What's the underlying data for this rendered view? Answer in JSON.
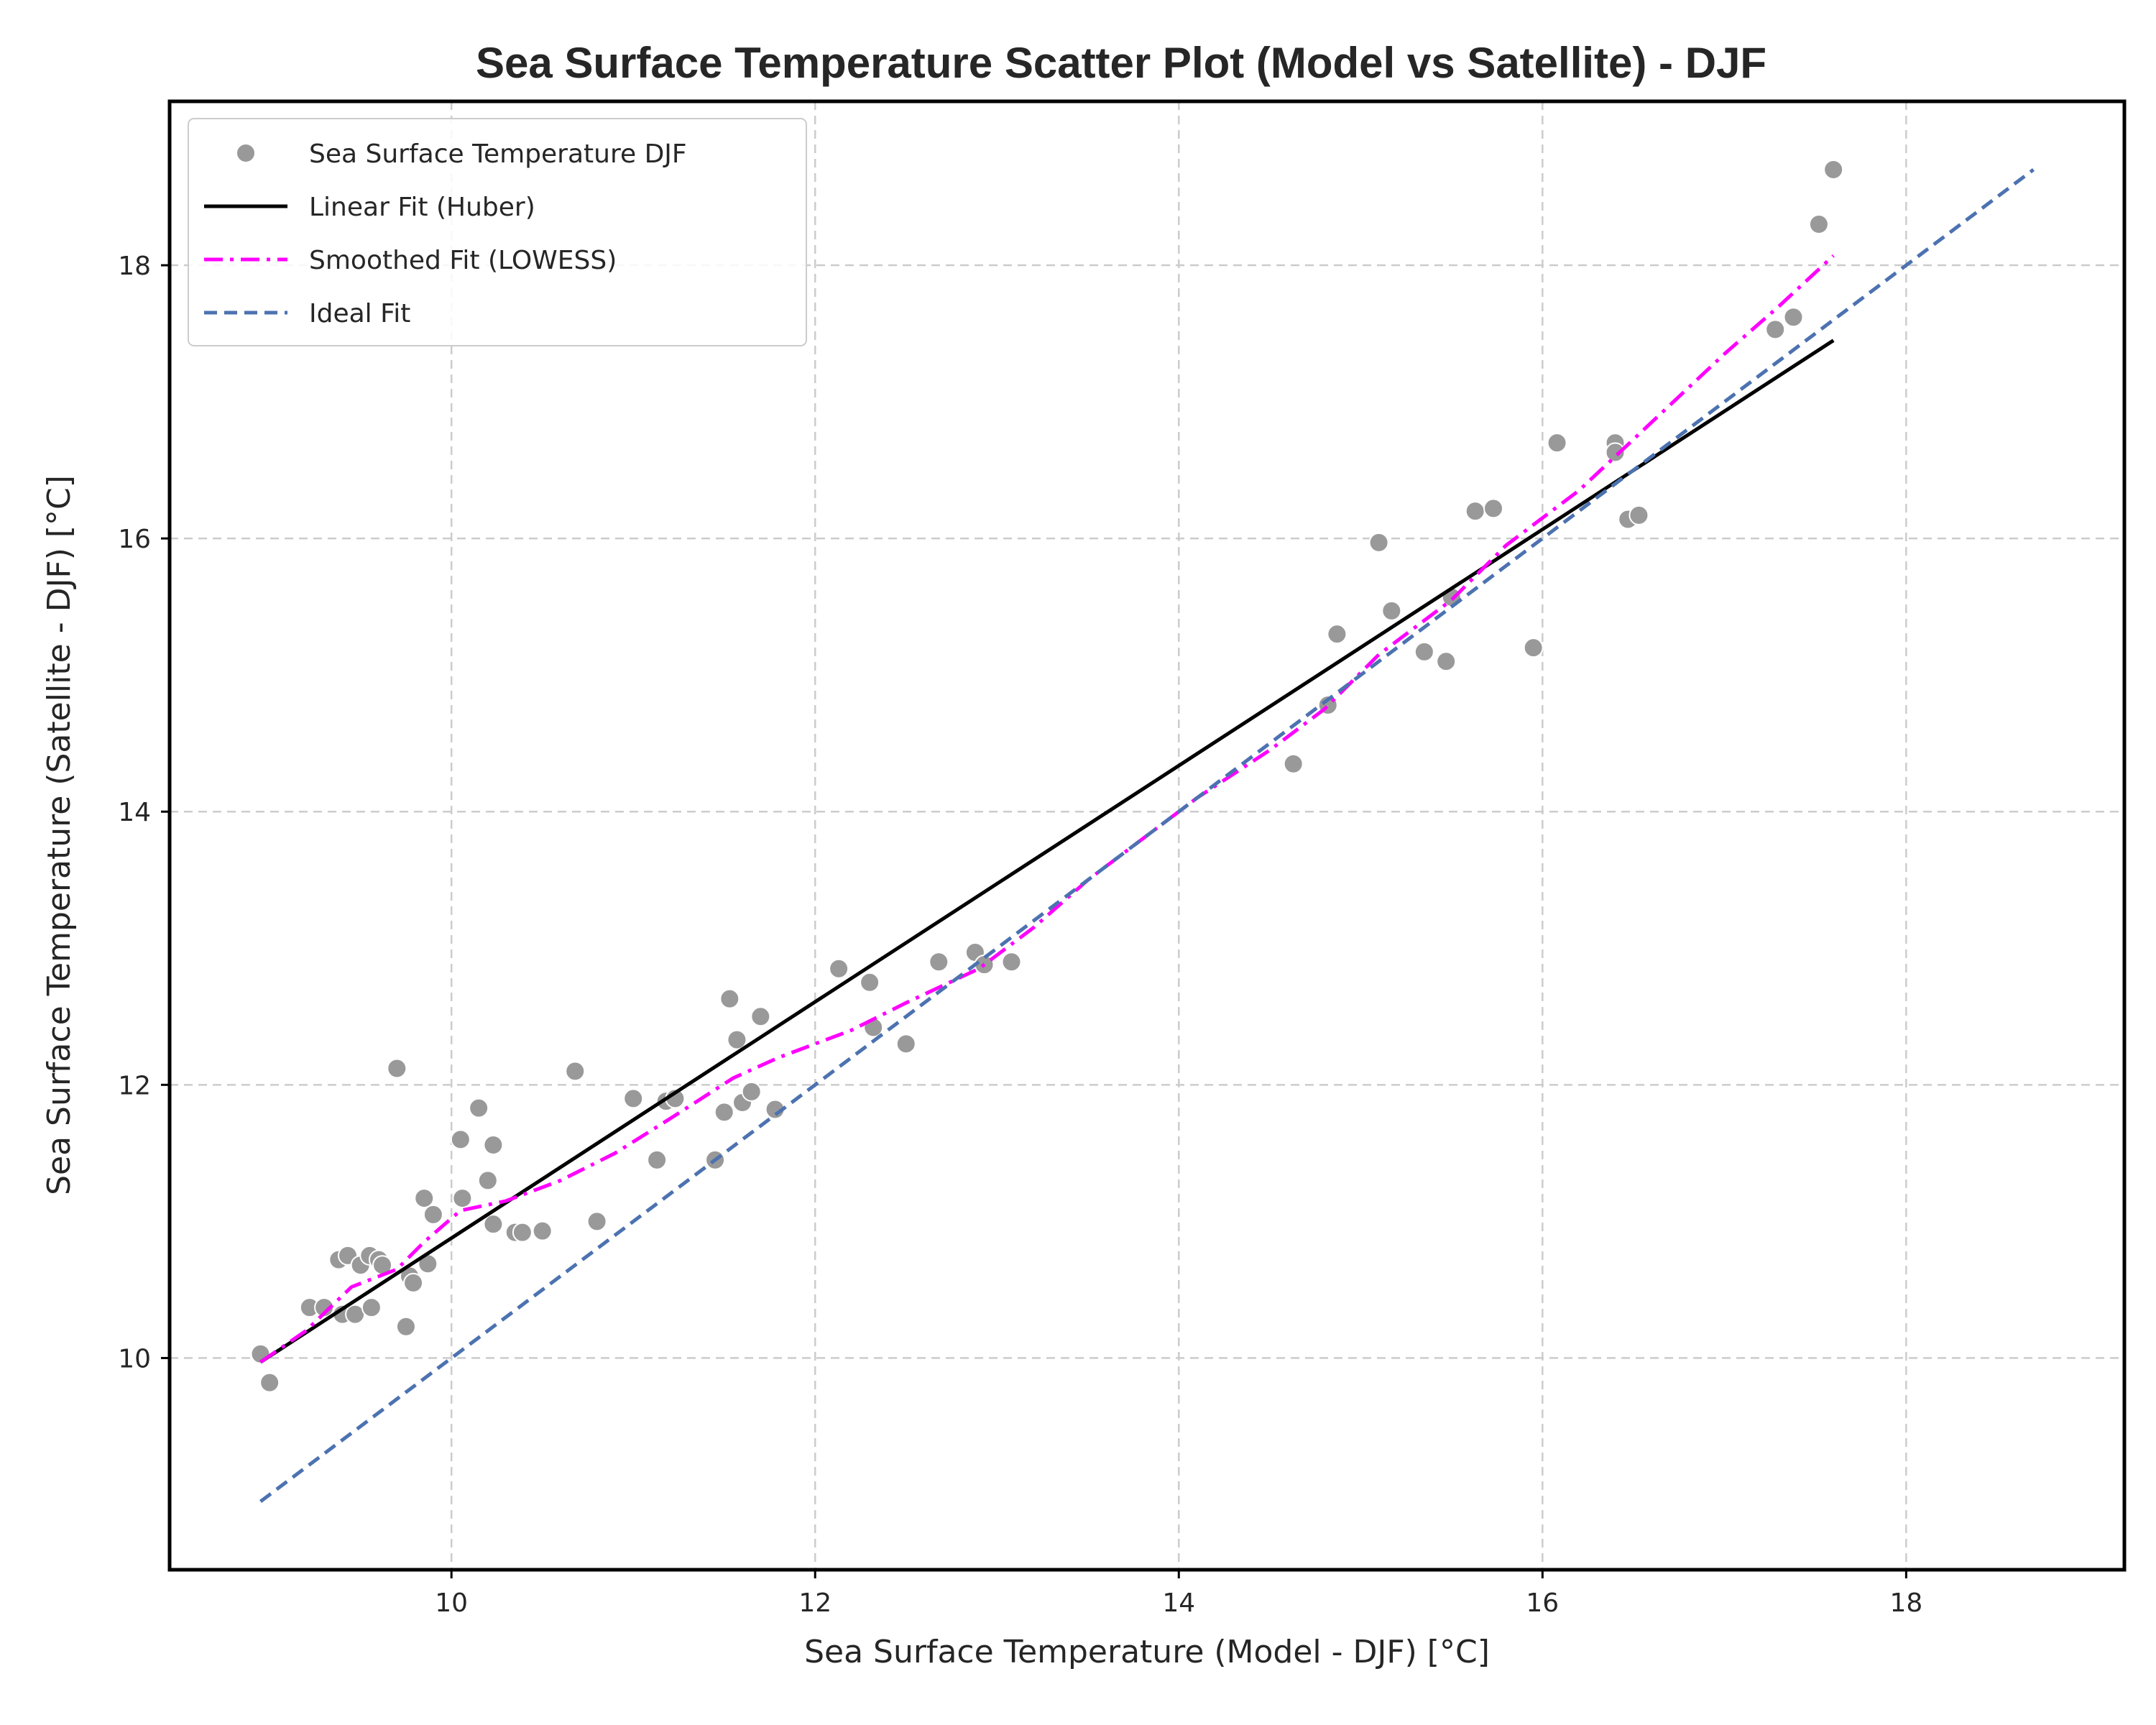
{
  "chart_data": {
    "type": "scatter",
    "title": "Sea Surface Temperature Scatter Plot (Model vs Satellite) - DJF",
    "xlabel": "Sea Surface Temperature (Model - DJF) [°C]",
    "ylabel": "Sea Surface Temperature (Satellite - DJF) [°C]",
    "xlim": [
      8.45,
      19.2
    ],
    "ylim": [
      8.45,
      19.2
    ],
    "xticks": [
      10,
      12,
      14,
      16,
      18
    ],
    "yticks": [
      10,
      12,
      14,
      16,
      18
    ],
    "grid": true,
    "legend_position": "top-left",
    "series": [
      {
        "name": "Sea Surface Temperature DJF",
        "kind": "scatter",
        "color": "#999999",
        "points": [
          [
            8.95,
            10.03
          ],
          [
            9.0,
            9.82
          ],
          [
            9.22,
            10.37
          ],
          [
            9.3,
            10.37
          ],
          [
            9.38,
            10.72
          ],
          [
            9.4,
            10.32
          ],
          [
            9.43,
            10.75
          ],
          [
            9.47,
            10.32
          ],
          [
            9.5,
            10.68
          ],
          [
            9.55,
            10.75
          ],
          [
            9.56,
            10.37
          ],
          [
            9.6,
            10.72
          ],
          [
            9.62,
            10.68
          ],
          [
            9.7,
            12.12
          ],
          [
            9.75,
            10.23
          ],
          [
            9.77,
            10.6
          ],
          [
            9.79,
            10.55
          ],
          [
            9.85,
            11.17
          ],
          [
            9.87,
            10.69
          ],
          [
            9.9,
            11.05
          ],
          [
            10.05,
            11.6
          ],
          [
            10.06,
            11.17
          ],
          [
            10.15,
            11.83
          ],
          [
            10.2,
            11.3
          ],
          [
            10.23,
            11.56
          ],
          [
            10.23,
            10.98
          ],
          [
            10.35,
            10.92
          ],
          [
            10.39,
            10.92
          ],
          [
            10.5,
            10.93
          ],
          [
            10.68,
            12.1
          ],
          [
            10.8,
            11.0
          ],
          [
            11.0,
            11.9
          ],
          [
            11.13,
            11.45
          ],
          [
            11.18,
            11.88
          ],
          [
            11.23,
            11.9
          ],
          [
            11.45,
            11.45
          ],
          [
            11.5,
            11.8
          ],
          [
            11.53,
            12.63
          ],
          [
            11.57,
            12.33
          ],
          [
            11.6,
            11.87
          ],
          [
            11.65,
            11.95
          ],
          [
            11.7,
            12.5
          ],
          [
            11.78,
            11.82
          ],
          [
            12.13,
            12.85
          ],
          [
            12.3,
            12.75
          ],
          [
            12.32,
            12.42
          ],
          [
            12.5,
            12.3
          ],
          [
            12.68,
            12.9
          ],
          [
            12.88,
            12.97
          ],
          [
            12.93,
            12.88
          ],
          [
            13.08,
            12.9
          ],
          [
            14.63,
            14.35
          ],
          [
            14.82,
            14.78
          ],
          [
            14.87,
            15.3
          ],
          [
            15.1,
            15.97
          ],
          [
            15.17,
            15.47
          ],
          [
            15.35,
            15.17
          ],
          [
            15.47,
            15.1
          ],
          [
            15.5,
            15.57
          ],
          [
            15.63,
            16.2
          ],
          [
            15.73,
            16.22
          ],
          [
            15.95,
            15.2
          ],
          [
            16.08,
            16.7
          ],
          [
            16.4,
            16.7
          ],
          [
            16.4,
            16.63
          ],
          [
            16.47,
            16.14
          ],
          [
            16.53,
            16.17
          ],
          [
            17.28,
            17.53
          ],
          [
            17.38,
            17.62
          ],
          [
            17.52,
            18.3
          ],
          [
            17.6,
            18.7
          ]
        ]
      },
      {
        "name": "Linear Fit (Huber)",
        "kind": "line",
        "color": "#000000",
        "points": [
          [
            8.95,
            9.97
          ],
          [
            17.6,
            17.45
          ]
        ]
      },
      {
        "name": "Smoothed Fit (LOWESS)",
        "kind": "line",
        "style": "dashdot",
        "color": "#ff00ff",
        "points": [
          [
            8.95,
            9.97
          ],
          [
            9.2,
            10.2
          ],
          [
            9.45,
            10.52
          ],
          [
            9.7,
            10.65
          ],
          [
            9.85,
            10.85
          ],
          [
            10.05,
            11.08
          ],
          [
            10.3,
            11.15
          ],
          [
            10.6,
            11.3
          ],
          [
            10.9,
            11.5
          ],
          [
            11.2,
            11.75
          ],
          [
            11.55,
            12.05
          ],
          [
            11.8,
            12.2
          ],
          [
            12.2,
            12.4
          ],
          [
            12.5,
            12.6
          ],
          [
            12.9,
            12.85
          ],
          [
            13.2,
            13.15
          ],
          [
            13.5,
            13.5
          ],
          [
            13.8,
            13.8
          ],
          [
            14.1,
            14.1
          ],
          [
            14.5,
            14.45
          ],
          [
            14.8,
            14.75
          ],
          [
            15.1,
            15.15
          ],
          [
            15.5,
            15.55
          ],
          [
            15.8,
            15.95
          ],
          [
            16.2,
            16.35
          ],
          [
            16.6,
            16.85
          ],
          [
            17.0,
            17.35
          ],
          [
            17.3,
            17.7
          ],
          [
            17.6,
            18.07
          ]
        ]
      },
      {
        "name": "Ideal Fit",
        "kind": "line",
        "style": "dashed",
        "color": "#4c72b0",
        "points": [
          [
            8.95,
            8.95
          ],
          [
            18.7,
            18.7
          ]
        ]
      }
    ]
  }
}
